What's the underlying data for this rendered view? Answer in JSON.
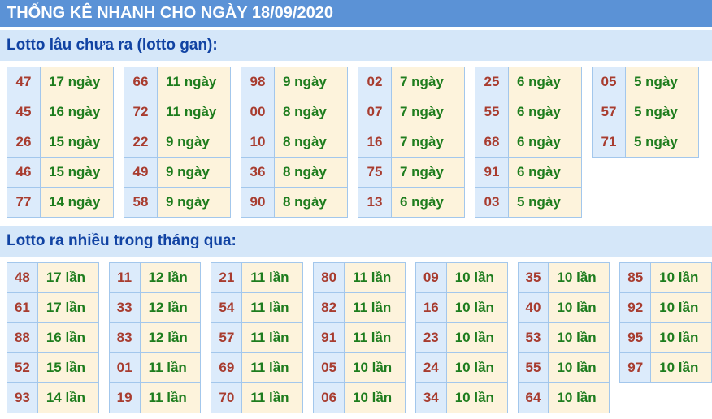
{
  "page": {
    "title": "THỐNG KÊ NHANH CHO NGÀY 18/09/2020"
  },
  "colors": {
    "title_bar_bg": "#5b92d6",
    "title_text": "#ffffff",
    "section_bar_bg": "#d5e7f9",
    "section_heading_text": "#1143a3",
    "cell_border": "#a3c7ec",
    "number_cell_bg": "#dcebfb",
    "value_cell_bg": "#fdf3dc",
    "number_text": "#a83c2f",
    "value_text": "#1e7d1e"
  },
  "sections": [
    {
      "heading": "Lotto lâu chưa ra (lotto gan):",
      "unit": "ngày",
      "tables": [
        [
          {
            "num": "47",
            "value": "17 ngày"
          },
          {
            "num": "45",
            "value": "16 ngày"
          },
          {
            "num": "26",
            "value": "15 ngày"
          },
          {
            "num": "46",
            "value": "15 ngày"
          },
          {
            "num": "77",
            "value": "14 ngày"
          }
        ],
        [
          {
            "num": "66",
            "value": "11 ngày"
          },
          {
            "num": "72",
            "value": "11 ngày"
          },
          {
            "num": "22",
            "value": "9 ngày"
          },
          {
            "num": "49",
            "value": "9 ngày"
          },
          {
            "num": "58",
            "value": "9 ngày"
          }
        ],
        [
          {
            "num": "98",
            "value": "9 ngày"
          },
          {
            "num": "00",
            "value": "8 ngày"
          },
          {
            "num": "10",
            "value": "8 ngày"
          },
          {
            "num": "36",
            "value": "8 ngày"
          },
          {
            "num": "90",
            "value": "8 ngày"
          }
        ],
        [
          {
            "num": "02",
            "value": "7 ngày"
          },
          {
            "num": "07",
            "value": "7 ngày"
          },
          {
            "num": "16",
            "value": "7 ngày"
          },
          {
            "num": "75",
            "value": "7 ngày"
          },
          {
            "num": "13",
            "value": "6 ngày"
          }
        ],
        [
          {
            "num": "25",
            "value": "6 ngày"
          },
          {
            "num": "55",
            "value": "6 ngày"
          },
          {
            "num": "68",
            "value": "6 ngày"
          },
          {
            "num": "91",
            "value": "6 ngày"
          },
          {
            "num": "03",
            "value": "5 ngày"
          }
        ],
        [
          {
            "num": "05",
            "value": "5 ngày"
          },
          {
            "num": "57",
            "value": "5 ngày"
          },
          {
            "num": "71",
            "value": "5 ngày"
          }
        ]
      ]
    },
    {
      "heading": "Lotto ra nhiều trong tháng qua:",
      "unit": "lần",
      "tables": [
        [
          {
            "num": "48",
            "value": "17 lần"
          },
          {
            "num": "61",
            "value": "17 lần"
          },
          {
            "num": "88",
            "value": "16 lần"
          },
          {
            "num": "52",
            "value": "15 lần"
          },
          {
            "num": "93",
            "value": "14 lần"
          }
        ],
        [
          {
            "num": "11",
            "value": "12 lần"
          },
          {
            "num": "33",
            "value": "12 lần"
          },
          {
            "num": "83",
            "value": "12 lần"
          },
          {
            "num": "01",
            "value": "11 lần"
          },
          {
            "num": "19",
            "value": "11 lần"
          }
        ],
        [
          {
            "num": "21",
            "value": "11 lần"
          },
          {
            "num": "54",
            "value": "11 lần"
          },
          {
            "num": "57",
            "value": "11 lần"
          },
          {
            "num": "69",
            "value": "11 lần"
          },
          {
            "num": "70",
            "value": "11 lần"
          }
        ],
        [
          {
            "num": "80",
            "value": "11 lần"
          },
          {
            "num": "82",
            "value": "11 lần"
          },
          {
            "num": "91",
            "value": "11 lần"
          },
          {
            "num": "05",
            "value": "10 lần"
          },
          {
            "num": "06",
            "value": "10 lần"
          }
        ],
        [
          {
            "num": "09",
            "value": "10 lần"
          },
          {
            "num": "16",
            "value": "10 lần"
          },
          {
            "num": "23",
            "value": "10 lần"
          },
          {
            "num": "24",
            "value": "10 lần"
          },
          {
            "num": "34",
            "value": "10 lần"
          }
        ],
        [
          {
            "num": "35",
            "value": "10 lần"
          },
          {
            "num": "40",
            "value": "10 lần"
          },
          {
            "num": "53",
            "value": "10 lần"
          },
          {
            "num": "55",
            "value": "10 lần"
          },
          {
            "num": "64",
            "value": "10 lần"
          }
        ],
        [
          {
            "num": "85",
            "value": "10 lần"
          },
          {
            "num": "92",
            "value": "10 lần"
          },
          {
            "num": "95",
            "value": "10 lần"
          },
          {
            "num": "97",
            "value": "10 lần"
          }
        ]
      ]
    }
  ]
}
